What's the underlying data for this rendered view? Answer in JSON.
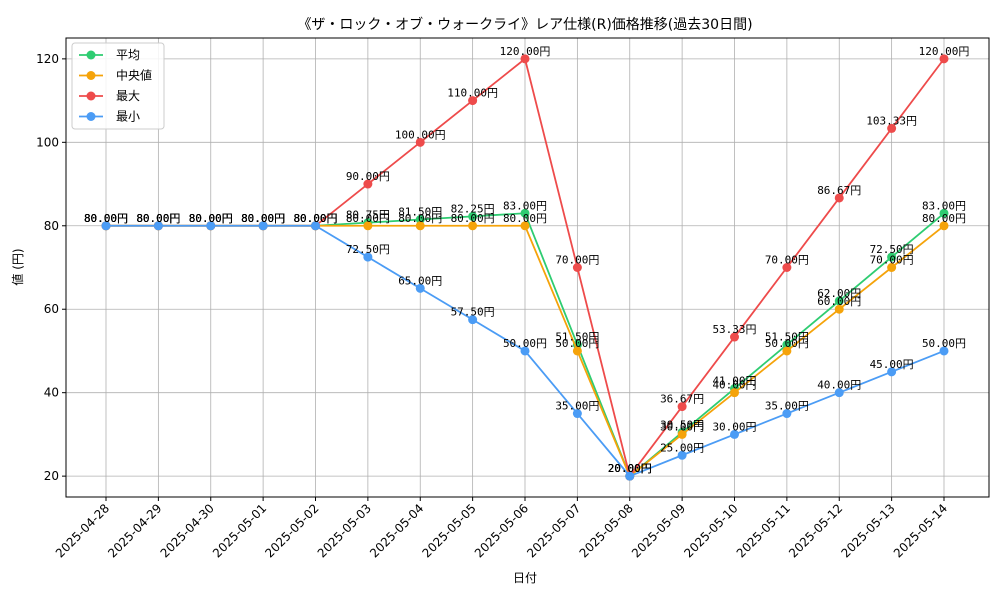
{
  "chart_data": {
    "type": "line",
    "title": "《ザ・ロック・オブ・ウォークライ》レア仕様(R)価格推移(過去30日間)",
    "xlabel": "日付",
    "ylabel": "値 (円)",
    "ylim": [
      15,
      125
    ],
    "yticks": [
      20,
      40,
      60,
      80,
      100,
      120
    ],
    "grid": true,
    "legend_position": "top-left",
    "label_suffix": "円",
    "categories": [
      "2025-04-28",
      "2025-04-29",
      "2025-04-30",
      "2025-05-01",
      "2025-05-02",
      "2025-05-03",
      "2025-05-04",
      "2025-05-05",
      "2025-05-06",
      "2025-05-07",
      "2025-05-08",
      "2025-05-09",
      "2025-05-10",
      "2025-05-11",
      "2025-05-12",
      "2025-05-13",
      "2025-05-14"
    ],
    "series": [
      {
        "name": "平均",
        "color": "#2ecc71",
        "values": [
          80,
          80,
          80,
          80,
          80,
          80.75,
          81.5,
          82.25,
          83,
          51.5,
          20,
          30.5,
          41,
          51.5,
          62,
          72.5,
          83
        ]
      },
      {
        "name": "中央値",
        "color": "#f5a30a",
        "values": [
          80,
          80,
          80,
          80,
          80,
          80,
          80,
          80,
          80,
          50,
          20,
          30,
          40,
          50,
          60,
          70,
          80
        ]
      },
      {
        "name": "最大",
        "color": "#ee4b4b",
        "values": [
          80,
          80,
          80,
          80,
          80,
          90,
          100,
          110,
          120,
          70,
          20,
          36.67,
          53.33,
          70,
          86.67,
          103.33,
          120
        ]
      },
      {
        "name": "最小",
        "color": "#4b9cf5",
        "values": [
          80,
          80,
          80,
          80,
          80,
          72.5,
          65,
          57.5,
          50,
          35,
          20,
          25,
          30,
          35,
          40,
          45,
          50
        ]
      }
    ]
  }
}
